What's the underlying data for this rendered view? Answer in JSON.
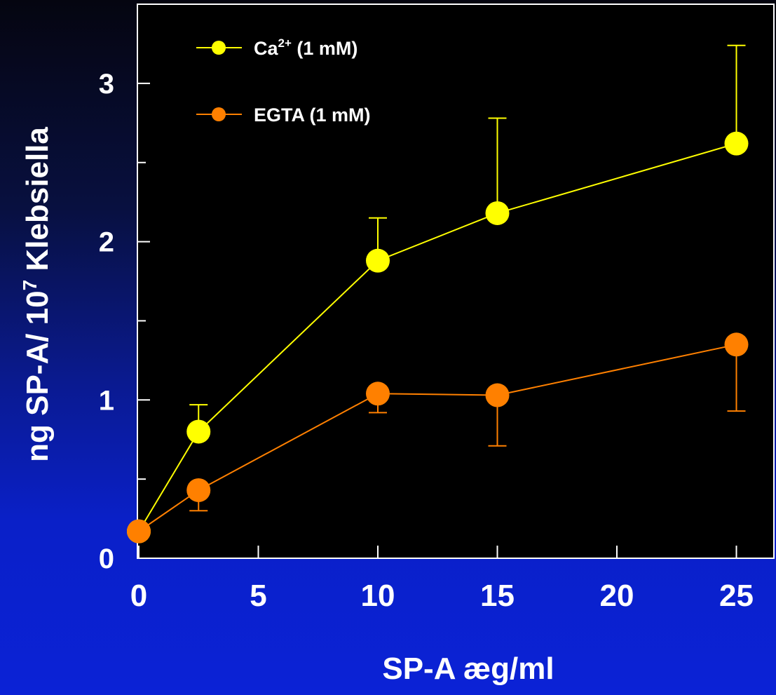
{
  "chart_data": {
    "type": "line",
    "xlabel": "SP-A æg/ml",
    "ylabel": {
      "pre": "ng SP-A/ 10",
      "sup": "7",
      "post": " Klebsiella"
    },
    "xlim": [
      0,
      26.5
    ],
    "ylim": [
      0,
      3.5
    ],
    "x_ticks": [
      0,
      5,
      10,
      15,
      20,
      25
    ],
    "x_tick_labels": [
      "0",
      "5",
      "10",
      "15",
      "20",
      "25"
    ],
    "y_ticks": [
      0,
      1,
      2,
      3
    ],
    "y_tick_labels": [
      "0",
      "1",
      "2",
      "3"
    ],
    "y_minor_ticks": [
      0.5,
      1.5,
      2.5
    ],
    "grid": false,
    "legend_position": "top-left",
    "background": "#000000",
    "series": [
      {
        "name": "Ca2+ (1 mM)",
        "legend_parts": {
          "base": "Ca",
          "sup": "2+",
          "rest": " (1 mM)"
        },
        "color": "#ffff00",
        "x": [
          0,
          2.5,
          10,
          15,
          25
        ],
        "y": [
          0.17,
          0.8,
          1.88,
          2.18,
          2.62
        ],
        "err": [
          0,
          0.17,
          0.27,
          0.6,
          0.62
        ],
        "err_dir": "up"
      },
      {
        "name": "EGTA (1 mM)",
        "legend_parts": {
          "base": "EGTA",
          "sup": "",
          "rest": " (1 mM)"
        },
        "color": "#ff8000",
        "x": [
          0,
          2.5,
          10,
          15,
          25
        ],
        "y": [
          0.17,
          0.43,
          1.04,
          1.03,
          1.35
        ],
        "err": [
          0,
          0.13,
          0.12,
          0.32,
          0.42
        ],
        "err_dir": "down"
      }
    ]
  }
}
